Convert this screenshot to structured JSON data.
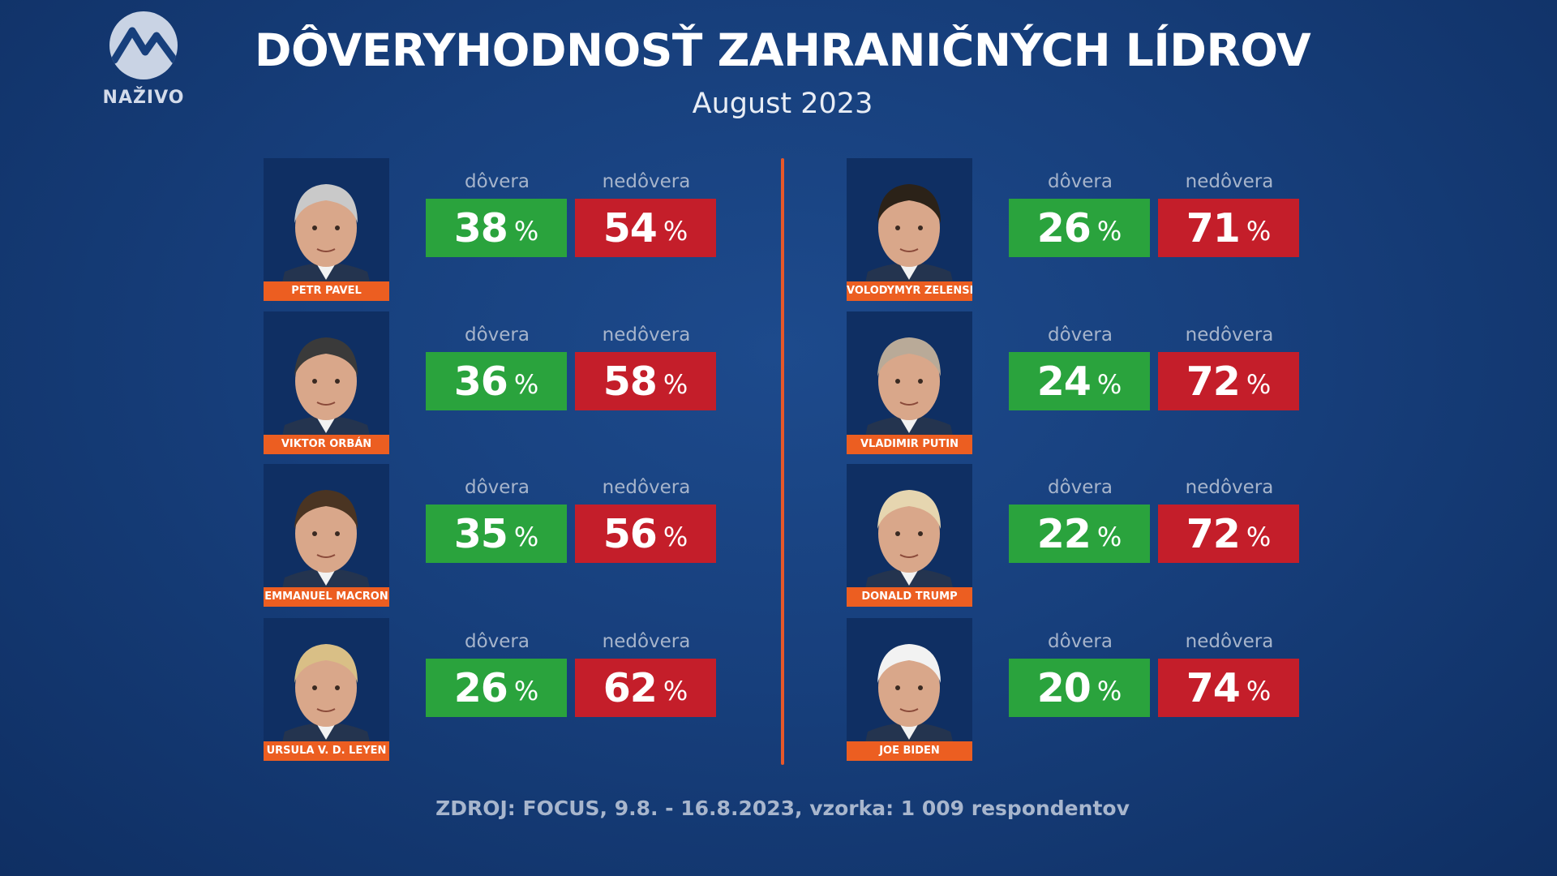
{
  "branding": {
    "logo_text": "NAŽIVO",
    "logo_icon": "markiza-wave-icon"
  },
  "chart_data": {
    "type": "table",
    "title": "DÔVERYHODNOSŤ ZAHRANIČNÝCH LÍDROV",
    "subtitle": "August 2023",
    "columns": [
      "dôvera",
      "nedôvera"
    ],
    "unit": "%",
    "series": [
      {
        "name": "dôvera",
        "values": [
          38,
          36,
          35,
          26,
          26,
          24,
          22,
          20
        ]
      },
      {
        "name": "nedôvera",
        "values": [
          54,
          58,
          56,
          62,
          71,
          72,
          72,
          74
        ]
      }
    ],
    "categories": [
      "PETR PAVEL",
      "VIKTOR ORBÁN",
      "EMMANUEL MACRON",
      "URSULA V. D. LEYEN",
      "VOLODYMYR ZELENSKYJ",
      "VLADIMIR PUTIN",
      "DONALD TRUMP",
      "JOE BIDEN"
    ],
    "leaders": [
      {
        "name": "PETR PAVEL",
        "trust": "38",
        "distrust": "54",
        "hair": "#c9c9c9"
      },
      {
        "name": "VIKTOR ORBÁN",
        "trust": "36",
        "distrust": "58",
        "hair": "#3a3a3a"
      },
      {
        "name": "EMMANUEL MACRON",
        "trust": "35",
        "distrust": "56",
        "hair": "#4a3422"
      },
      {
        "name": "URSULA V. D. LEYEN",
        "trust": "26",
        "distrust": "62",
        "hair": "#d9bf86"
      },
      {
        "name": "VOLODYMYR ZELENSKYJ",
        "trust": "26",
        "distrust": "71",
        "hair": "#2b2218"
      },
      {
        "name": "VLADIMIR PUTIN",
        "trust": "24",
        "distrust": "72",
        "hair": "#b9aa98"
      },
      {
        "name": "DONALD TRUMP",
        "trust": "22",
        "distrust": "72",
        "hair": "#e6d6b0"
      },
      {
        "name": "JOE BIDEN",
        "trust": "20",
        "distrust": "74",
        "hair": "#f2f2f2"
      }
    ],
    "source": "ZDROJ: FOCUS, 9.8. - 16.8.2023, vzorka: 1 009 respondentov"
  },
  "labels": {
    "trust": "dôvera",
    "distrust": "nedôvera",
    "percent": "%"
  },
  "colors": {
    "trust": "#2aa33d",
    "distrust": "#c41e2a",
    "accent": "#ec5e21",
    "background": "#173f7c"
  }
}
